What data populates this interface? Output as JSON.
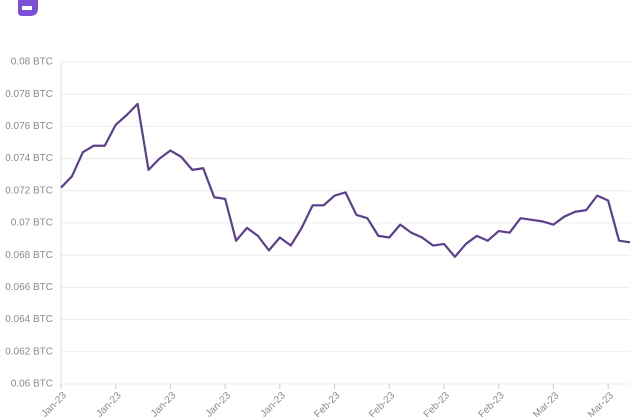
{
  "chart_data": {
    "type": "line",
    "categories": [
      "Jan-23",
      null,
      null,
      null,
      null,
      "Jan-23",
      null,
      null,
      null,
      null,
      "Jan-23",
      null,
      null,
      null,
      null,
      "Jan-23",
      null,
      null,
      null,
      null,
      "Jan-23",
      null,
      null,
      null,
      null,
      "Feb-23",
      null,
      null,
      null,
      null,
      "Feb-23",
      null,
      null,
      null,
      null,
      "Feb-23",
      null,
      null,
      null,
      null,
      "Feb-23",
      null,
      null,
      null,
      null,
      "Mar-23",
      null,
      null,
      null,
      null,
      "Mar-23",
      null,
      null
    ],
    "values": [
      0.0722,
      0.0729,
      0.0744,
      0.0748,
      0.0748,
      0.0761,
      0.0767,
      0.0774,
      0.0733,
      0.074,
      0.0745,
      0.0741,
      0.0733,
      0.0734,
      0.0716,
      0.0715,
      0.0689,
      0.0697,
      0.0692,
      0.0683,
      0.0691,
      0.0686,
      0.0697,
      0.0711,
      0.0711,
      0.0717,
      0.0719,
      0.0705,
      0.0703,
      0.0692,
      0.0691,
      0.0699,
      0.0694,
      0.0691,
      0.0686,
      0.0687,
      0.0679,
      0.0687,
      0.0692,
      0.0689,
      0.0695,
      0.0694,
      0.0703,
      0.0702,
      0.0701,
      0.0699,
      0.0704,
      0.0707,
      0.0708,
      0.0717,
      0.0714,
      0.0689,
      0.0688
    ],
    "color": "#5b3f8c",
    "ylim": [
      0.06,
      0.08
    ],
    "yticks": [
      {
        "value": 0.06,
        "label": "0.06 BTC"
      },
      {
        "value": 0.062,
        "label": "0.062 BTC"
      },
      {
        "value": 0.064,
        "label": "0.064 BTC"
      },
      {
        "value": 0.066,
        "label": "0.066 BTC"
      },
      {
        "value": 0.068,
        "label": "0.068 BTC"
      },
      {
        "value": 0.07,
        "label": "0.07 BTC"
      },
      {
        "value": 0.072,
        "label": "0.072 BTC"
      },
      {
        "value": 0.074,
        "label": "0.074 BTC"
      },
      {
        "value": 0.076,
        "label": "0.076 BTC"
      },
      {
        "value": 0.078,
        "label": "0.078 BTC"
      },
      {
        "value": 0.08,
        "label": "0.08 BTC"
      }
    ],
    "grid": true
  }
}
